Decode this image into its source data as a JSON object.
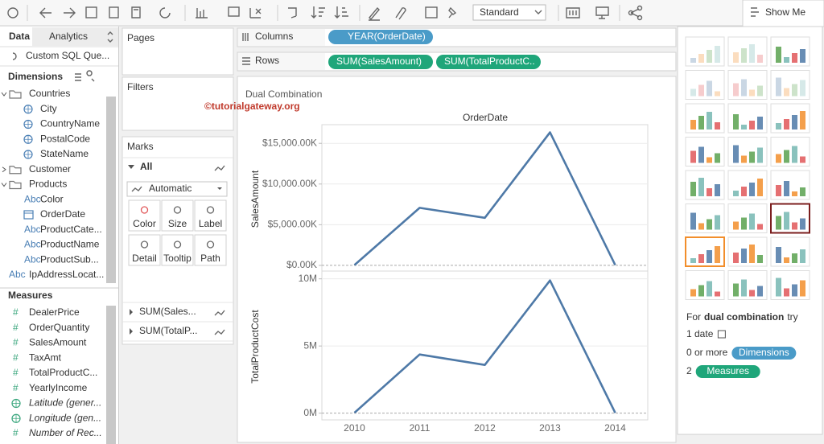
{
  "toolbar": {
    "mark_dropdown": "Standard",
    "show_me": "Show Me"
  },
  "data_pane": {
    "tabs": [
      "Data",
      "Analytics"
    ],
    "data_source": "Custom SQL Que...",
    "dimensions_header": "Dimensions",
    "dimensions": [
      {
        "label": "Countries"
      },
      {
        "label": "City"
      },
      {
        "label": "CountryName"
      },
      {
        "label": "PostalCode"
      },
      {
        "label": "StateName"
      },
      {
        "label": "Customer"
      },
      {
        "label": "Products"
      },
      {
        "icon": "Abc",
        "label": "Color"
      },
      {
        "label": "OrderDate"
      },
      {
        "icon": "Abc",
        "label": "ProductCate..."
      },
      {
        "icon": "Abc",
        "label": "ProductName"
      },
      {
        "icon": "Abc",
        "label": "ProductSub..."
      },
      {
        "icon": "Abc",
        "label": "IpAddressLocat..."
      }
    ],
    "measures_header": "Measures",
    "measures": [
      {
        "icon": "#",
        "label": "DealerPrice"
      },
      {
        "icon": "#",
        "label": "OrderQuantity"
      },
      {
        "icon": "#",
        "label": "SalesAmount"
      },
      {
        "icon": "#",
        "label": "TaxAmt"
      },
      {
        "icon": "#",
        "label": "TotalProductC..."
      },
      {
        "icon": "#",
        "label": "YearlyIncome"
      },
      {
        "label": "Latitude (gener..."
      },
      {
        "label": "Longitude (gen..."
      },
      {
        "icon": "#",
        "label": "Number of Rec..."
      }
    ]
  },
  "shelves": {
    "pages": "Pages",
    "filters": "Filters",
    "columns_label": "Columns",
    "rows_label": "Rows",
    "columns": [
      "YEAR(OrderDate)"
    ],
    "rows": [
      "SUM(SalesAmount)",
      "SUM(TotalProductC.."
    ]
  },
  "marks": {
    "title": "Marks",
    "all": "All",
    "mark_type": "Automatic",
    "buttons": [
      "Color",
      "Size",
      "Label",
      "Detail",
      "Tooltip",
      "Path"
    ],
    "measures": [
      "SUM(Sales...",
      "SUM(TotalP..."
    ]
  },
  "chart_data": {
    "type": "line",
    "title": "Dual Combination",
    "annotation": "©tutorialgateway.org",
    "x_label": "OrderDate",
    "categories": [
      "2010",
      "2011",
      "2012",
      "2013",
      "2014"
    ],
    "grid": true,
    "panes": [
      {
        "y_label": "SalesAmount",
        "ylim": [
          -700,
          17000
        ],
        "yticks": [
          {
            "value": 0,
            "label": "$0.00K"
          },
          {
            "value": 5000,
            "label": "$5,000.00K"
          },
          {
            "value": 10000,
            "label": "$10,000.00K"
          },
          {
            "value": 15000,
            "label": "$15,000.00K"
          }
        ],
        "series": [
          {
            "color": "#4e79a7",
            "values": [
              43,
              7075,
              5843,
              16352,
              51
            ]
          }
        ]
      },
      {
        "y_label": "TotalProductCost",
        "ylim": [
          -0.5,
          10.4
        ],
        "yticks": [
          {
            "value": 0,
            "label": "0M"
          },
          {
            "value": 5,
            "label": "5M"
          },
          {
            "value": 10,
            "label": "10M"
          }
        ],
        "series": [
          {
            "color": "#4e79a7",
            "values": [
              0.03,
              4.37,
              3.59,
              9.88,
              0.03
            ]
          }
        ]
      }
    ]
  },
  "show_me": {
    "hint_prefix": "For",
    "hint_chart": "dual combination",
    "hint_suffix": "try",
    "requirements": [
      {
        "count": "1 date"
      },
      {
        "count": "0 or more",
        "pill": "Dimensions"
      },
      {
        "count": "2",
        "pill": "Measures"
      }
    ]
  }
}
